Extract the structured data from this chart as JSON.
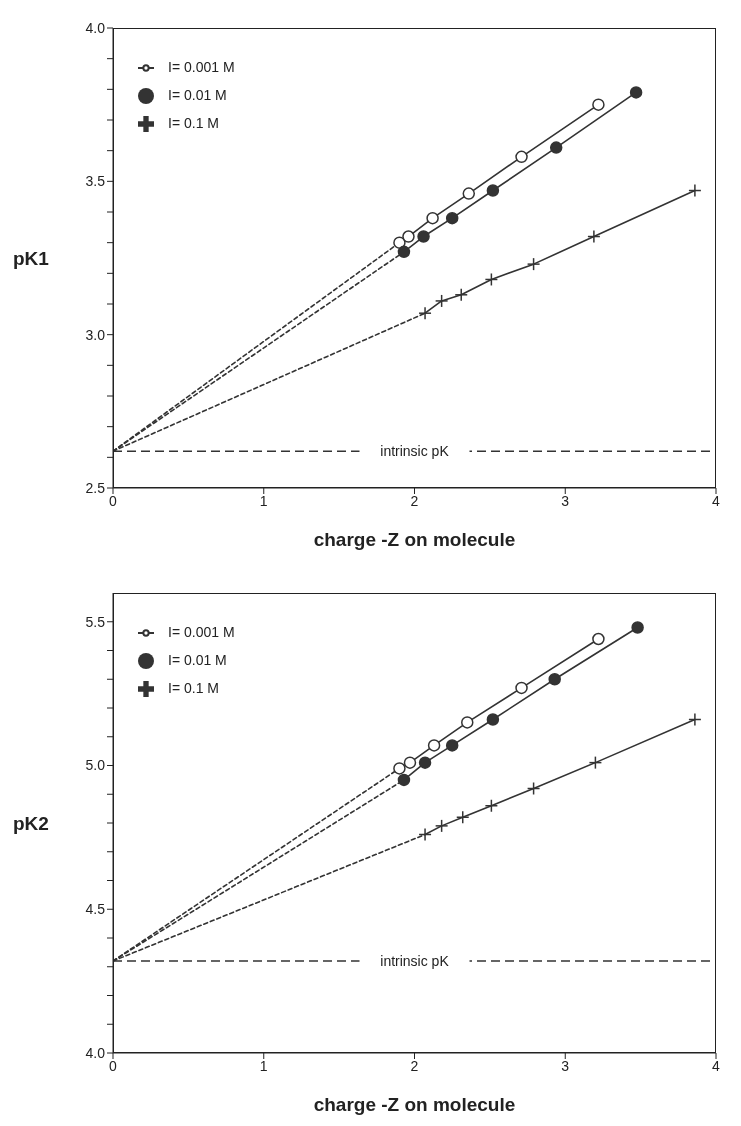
{
  "chart_data": [
    {
      "type": "line",
      "xlabel": "charge -Z on molecule",
      "ylabel": "pK1",
      "xlim": [
        0,
        4
      ],
      "xticks": [
        0,
        1,
        2,
        3,
        4
      ],
      "ylim": [
        2.5,
        4.0
      ],
      "yticks": [
        2.5,
        {
          "value": 2.6,
          "label": null
        },
        {
          "value": 2.7,
          "label": null
        },
        {
          "value": 2.8,
          "label": null
        },
        {
          "value": 2.9,
          "label": null
        },
        {
          "value": 3.0,
          "label": "3.0"
        },
        {
          "value": 3.1,
          "label": null
        },
        {
          "value": 3.2,
          "label": null
        },
        {
          "value": 3.3,
          "label": null
        },
        {
          "value": 3.4,
          "label": null
        },
        3.5,
        {
          "value": 3.6,
          "label": null
        },
        {
          "value": 3.7,
          "label": null
        },
        {
          "value": 3.8,
          "label": null
        },
        {
          "value": 3.9,
          "label": null
        },
        {
          "value": 4.0,
          "label": "4.0"
        }
      ],
      "legend": "top left",
      "series": [
        {
          "name": "I= 0.001 M",
          "color": "#333333",
          "marker": "circle",
          "line_style": "solid",
          "x": [
            1.9,
            1.96,
            2.12,
            2.36,
            2.71,
            3.22
          ],
          "values": [
            3.3,
            3.32,
            3.38,
            3.46,
            3.58,
            3.75
          ]
        },
        {
          "name": "I= 0.01 M",
          "color": "#333333",
          "marker": "circle",
          "line_style": "solid",
          "x": [
            1.93,
            2.06,
            2.25,
            2.52,
            2.94,
            3.47
          ],
          "values": [
            3.27,
            3.32,
            3.38,
            3.47,
            3.61,
            3.79
          ]
        },
        {
          "name": "I= 0.1 M",
          "color": "#333333",
          "marker": "cross",
          "line_style": "solid",
          "x": [
            2.07,
            2.18,
            2.31,
            2.51,
            2.79,
            3.19,
            3.86
          ],
          "values": [
            3.07,
            3.11,
            3.13,
            3.18,
            3.23,
            3.32,
            3.47
          ]
        },
        {
          "type": "line",
          "color": "#333333",
          "marker": "none",
          "line_style": "dashed",
          "x": [
            0,
            1.9
          ],
          "values": [
            2.62,
            3.3
          ]
        },
        {
          "type": "line",
          "color": "#333333",
          "marker": "none",
          "line_style": "dashed",
          "x": [
            0,
            1.93
          ],
          "values": [
            2.62,
            3.27
          ]
        },
        {
          "type": "line",
          "color": "#333333",
          "marker": "none",
          "line_style": "dashed",
          "x": [
            0,
            2.07
          ],
          "values": [
            2.62,
            3.07
          ]
        }
      ],
      "ref_lines": [
        {
          "axis": "y",
          "value": 2.62,
          "label": "intrinsic pK",
          "line_style": "dashed",
          "color": "#333333"
        }
      ]
    },
    {
      "type": "line",
      "xlabel": "charge -Z on molecule",
      "ylabel": "pK2",
      "xlim": [
        0,
        4
      ],
      "xticks": [
        0,
        1,
        2,
        3,
        4
      ],
      "ylim": [
        4.0,
        5.6
      ],
      "yticks": [
        {
          "value": 4.0,
          "label": "4.0"
        },
        {
          "value": 4.1,
          "label": null
        },
        {
          "value": 4.2,
          "label": null
        },
        {
          "value": 4.3,
          "label": null
        },
        {
          "value": 4.4,
          "label": null
        },
        4.5,
        {
          "value": 4.6,
          "label": null
        },
        {
          "value": 4.7,
          "label": null
        },
        {
          "value": 4.8,
          "label": null
        },
        {
          "value": 4.9,
          "label": null
        },
        {
          "value": 5.0,
          "label": "5.0"
        },
        {
          "value": 5.1,
          "label": null
        },
        {
          "value": 5.2,
          "label": null
        },
        {
          "value": 5.3,
          "label": null
        },
        {
          "value": 5.4,
          "label": null
        },
        5.5
      ],
      "legend": "top left",
      "series": [
        {
          "name": "I= 0.001 M",
          "color": "#333333",
          "marker": "circle",
          "line_style": "solid",
          "x": [
            1.9,
            1.97,
            2.13,
            2.35,
            2.71,
            3.22
          ],
          "values": [
            4.99,
            5.01,
            5.07,
            5.15,
            5.27,
            5.44
          ]
        },
        {
          "name": "I= 0.01 M",
          "color": "#333333",
          "marker": "circle",
          "line_style": "solid",
          "x": [
            1.93,
            2.07,
            2.25,
            2.52,
            2.93,
            3.48
          ],
          "values": [
            4.95,
            5.01,
            5.07,
            5.16,
            5.3,
            5.48
          ]
        },
        {
          "name": "I= 0.1 M",
          "color": "#333333",
          "marker": "cross",
          "line_style": "solid",
          "x": [
            2.07,
            2.18,
            2.32,
            2.51,
            2.79,
            3.2,
            3.86
          ],
          "values": [
            4.76,
            4.79,
            4.82,
            4.86,
            4.92,
            5.01,
            5.16
          ]
        },
        {
          "type": "line",
          "color": "#333333",
          "marker": "none",
          "line_style": "dashed",
          "x": [
            0,
            1.9
          ],
          "values": [
            4.32,
            4.99
          ]
        },
        {
          "type": "line",
          "color": "#333333",
          "marker": "none",
          "line_style": "dashed",
          "x": [
            0,
            1.93
          ],
          "values": [
            4.32,
            4.95
          ]
        },
        {
          "type": "line",
          "color": "#333333",
          "marker": "none",
          "line_style": "dashed",
          "x": [
            0,
            2.07
          ],
          "values": [
            4.32,
            4.76
          ]
        }
      ],
      "ref_lines": [
        {
          "axis": "y",
          "value": 4.32,
          "label": "intrinsic pK",
          "line_style": "dashed",
          "color": "#333333"
        }
      ]
    }
  ]
}
